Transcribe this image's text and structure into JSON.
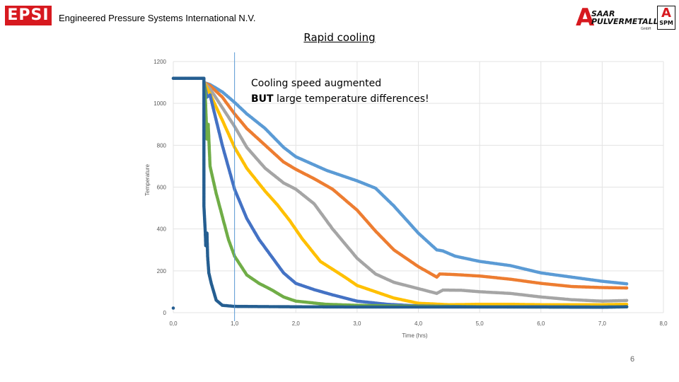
{
  "header": {
    "logo_text": "EPSI",
    "company": "Engineered Pressure Systems International N.V.",
    "title": "Rapid cooling",
    "saar_line1": "SAAR",
    "saar_line2": "PULVERMETALL",
    "saar_small": "GmbH",
    "spm_text": "SPM"
  },
  "annotation": {
    "line1": "Cooling speed augmented",
    "line2_bold": "BUT",
    "line2_rest": " large temperature differences!"
  },
  "page_number": "6",
  "chart_data": {
    "type": "scatter",
    "title": "",
    "xlabel": "Time (hrs)",
    "ylabel": "Temperature",
    "xlim": [
      0,
      8
    ],
    "ylim": [
      0,
      1200
    ],
    "xticks": [
      "0,0",
      "1,0",
      "2,0",
      "3,0",
      "4,0",
      "5,0",
      "6,0",
      "7,0",
      "8,0"
    ],
    "yticks": [
      "0",
      "200",
      "400",
      "600",
      "800",
      "1000",
      "1200"
    ],
    "grid": true,
    "legend": "none",
    "reference_line_x": 1.0,
    "series": [
      {
        "color": "#5b9bd5",
        "points": [
          [
            0.5,
            1100
          ],
          [
            0.6,
            1090
          ],
          [
            0.8,
            1055
          ],
          [
            1.0,
            1005
          ],
          [
            1.2,
            950
          ],
          [
            1.5,
            880
          ],
          [
            1.8,
            790
          ],
          [
            2.0,
            745
          ],
          [
            2.5,
            680
          ],
          [
            3.0,
            630
          ],
          [
            3.3,
            595
          ],
          [
            3.6,
            510
          ],
          [
            4.0,
            380
          ],
          [
            4.3,
            300
          ],
          [
            4.4,
            295
          ],
          [
            4.6,
            270
          ],
          [
            5.0,
            245
          ],
          [
            5.5,
            225
          ],
          [
            6.0,
            190
          ],
          [
            6.5,
            170
          ],
          [
            7.0,
            150
          ],
          [
            7.4,
            138
          ]
        ]
      },
      {
        "color": "#ed7d31",
        "points": [
          [
            0.5,
            1100
          ],
          [
            0.6,
            1085
          ],
          [
            0.8,
            1030
          ],
          [
            1.0,
            950
          ],
          [
            1.2,
            880
          ],
          [
            1.5,
            800
          ],
          [
            1.8,
            720
          ],
          [
            2.0,
            685
          ],
          [
            2.3,
            640
          ],
          [
            2.6,
            590
          ],
          [
            3.0,
            490
          ],
          [
            3.3,
            390
          ],
          [
            3.6,
            300
          ],
          [
            4.0,
            220
          ],
          [
            4.3,
            170
          ],
          [
            4.35,
            185
          ],
          [
            4.6,
            182
          ],
          [
            5.0,
            175
          ],
          [
            5.5,
            160
          ],
          [
            6.0,
            140
          ],
          [
            6.5,
            125
          ],
          [
            7.0,
            120
          ],
          [
            7.4,
            118
          ]
        ]
      },
      {
        "color": "#a5a5a5",
        "points": [
          [
            0.5,
            1100
          ],
          [
            0.6,
            1070
          ],
          [
            0.8,
            980
          ],
          [
            1.0,
            890
          ],
          [
            1.2,
            790
          ],
          [
            1.5,
            690
          ],
          [
            1.8,
            620
          ],
          [
            2.0,
            590
          ],
          [
            2.3,
            520
          ],
          [
            2.6,
            400
          ],
          [
            3.0,
            260
          ],
          [
            3.3,
            185
          ],
          [
            3.6,
            145
          ],
          [
            4.0,
            115
          ],
          [
            4.3,
            92
          ],
          [
            4.4,
            108
          ],
          [
            4.7,
            107
          ],
          [
            5.0,
            100
          ],
          [
            5.5,
            92
          ],
          [
            6.0,
            75
          ],
          [
            6.5,
            62
          ],
          [
            7.0,
            55
          ],
          [
            7.4,
            58
          ]
        ]
      },
      {
        "color": "#ffc000",
        "points": [
          [
            0.5,
            1100
          ],
          [
            0.6,
            1045
          ],
          [
            0.8,
            920
          ],
          [
            1.0,
            790
          ],
          [
            1.2,
            690
          ],
          [
            1.5,
            580
          ],
          [
            1.7,
            515
          ],
          [
            1.9,
            440
          ],
          [
            2.1,
            355
          ],
          [
            2.4,
            245
          ],
          [
            2.8,
            170
          ],
          [
            3.0,
            130
          ],
          [
            3.3,
            100
          ],
          [
            3.6,
            70
          ],
          [
            4.0,
            45
          ],
          [
            4.5,
            38
          ],
          [
            5.0,
            40
          ],
          [
            5.5,
            40
          ],
          [
            6.0,
            38
          ],
          [
            7.0,
            38
          ],
          [
            7.4,
            40
          ]
        ]
      },
      {
        "color": "#4472c4",
        "points": [
          [
            0.5,
            1100
          ],
          [
            0.55,
            1030
          ],
          [
            0.6,
            1040
          ],
          [
            0.7,
            920
          ],
          [
            0.8,
            800
          ],
          [
            1.0,
            590
          ],
          [
            1.2,
            450
          ],
          [
            1.4,
            350
          ],
          [
            1.6,
            270
          ],
          [
            1.8,
            190
          ],
          [
            2.0,
            140
          ],
          [
            2.3,
            110
          ],
          [
            2.6,
            85
          ],
          [
            3.0,
            55
          ],
          [
            3.5,
            40
          ],
          [
            4.0,
            32
          ],
          [
            5.0,
            28
          ],
          [
            6.0,
            28
          ],
          [
            7.0,
            27
          ],
          [
            7.4,
            28
          ]
        ]
      },
      {
        "color": "#70ad47",
        "points": [
          [
            0.5,
            1100
          ],
          [
            0.52,
            1050
          ],
          [
            0.55,
            830
          ],
          [
            0.57,
            900
          ],
          [
            0.6,
            700
          ],
          [
            0.7,
            570
          ],
          [
            0.8,
            460
          ],
          [
            0.9,
            350
          ],
          [
            1.0,
            270
          ],
          [
            1.2,
            180
          ],
          [
            1.4,
            140
          ],
          [
            1.6,
            110
          ],
          [
            1.8,
            75
          ],
          [
            2.0,
            55
          ],
          [
            2.5,
            40
          ],
          [
            3.0,
            35
          ],
          [
            4.0,
            30
          ],
          [
            5.0,
            28
          ],
          [
            6.0,
            27
          ],
          [
            7.0,
            27
          ],
          [
            7.4,
            28
          ]
        ]
      },
      {
        "color": "#255e91",
        "points": [
          [
            0.0,
            1120
          ],
          [
            0.5,
            1120
          ],
          [
            0.5,
            1070
          ],
          [
            0.5,
            950
          ],
          [
            0.5,
            800
          ],
          [
            0.5,
            640
          ],
          [
            0.5,
            510
          ],
          [
            0.52,
            400
          ],
          [
            0.53,
            320
          ],
          [
            0.55,
            380
          ],
          [
            0.56,
            270
          ],
          [
            0.58,
            190
          ],
          [
            0.62,
            140
          ],
          [
            0.7,
            60
          ],
          [
            0.8,
            35
          ],
          [
            1.0,
            30
          ],
          [
            1.5,
            29
          ],
          [
            2.0,
            28
          ],
          [
            3.0,
            27
          ],
          [
            4.0,
            27
          ],
          [
            5.0,
            27
          ],
          [
            6.0,
            27
          ],
          [
            7.0,
            26
          ],
          [
            7.4,
            28
          ]
        ]
      }
    ]
  }
}
